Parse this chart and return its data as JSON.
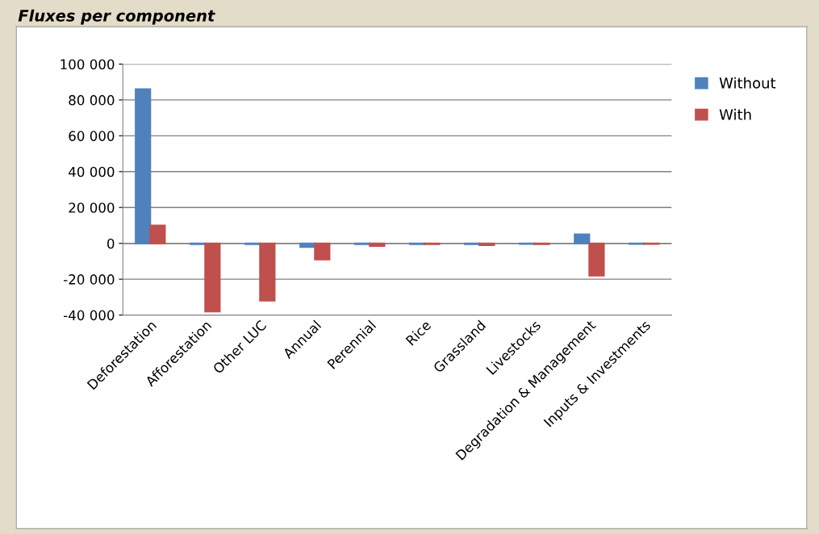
{
  "chart_data": {
    "type": "bar",
    "title": "Fluxes per component",
    "categories": [
      "Deforestation",
      "Afforestation",
      "Other LUC",
      "Annual",
      "Perennial",
      "Rice",
      "Grassland",
      "Livestocks",
      "Degradation & Management",
      "Inputs & Investments"
    ],
    "series": [
      {
        "name": "Without",
        "color": "#4f81bd",
        "values": [
          86000,
          -500,
          -500,
          -2000,
          -500,
          -500,
          -500,
          -300,
          5000,
          -300
        ]
      },
      {
        "name": "With",
        "color": "#c0504d",
        "values": [
          10000,
          -38000,
          -32000,
          -9000,
          -1500,
          -500,
          -1000,
          -500,
          -18000,
          -300
        ]
      }
    ],
    "ylim": [
      -40000,
      100000
    ],
    "yticks": [
      {
        "value": -40000,
        "label": "-40 000"
      },
      {
        "value": -20000,
        "label": "-20 000"
      },
      {
        "value": 0,
        "label": "0"
      },
      {
        "value": 20000,
        "label": "20 000"
      },
      {
        "value": 40000,
        "label": "40 000"
      },
      {
        "value": 60000,
        "label": "60 000"
      },
      {
        "value": 80000,
        "label": "80 000"
      },
      {
        "value": 100000,
        "label": "100 000"
      }
    ],
    "grid": "y",
    "legend": "right"
  }
}
